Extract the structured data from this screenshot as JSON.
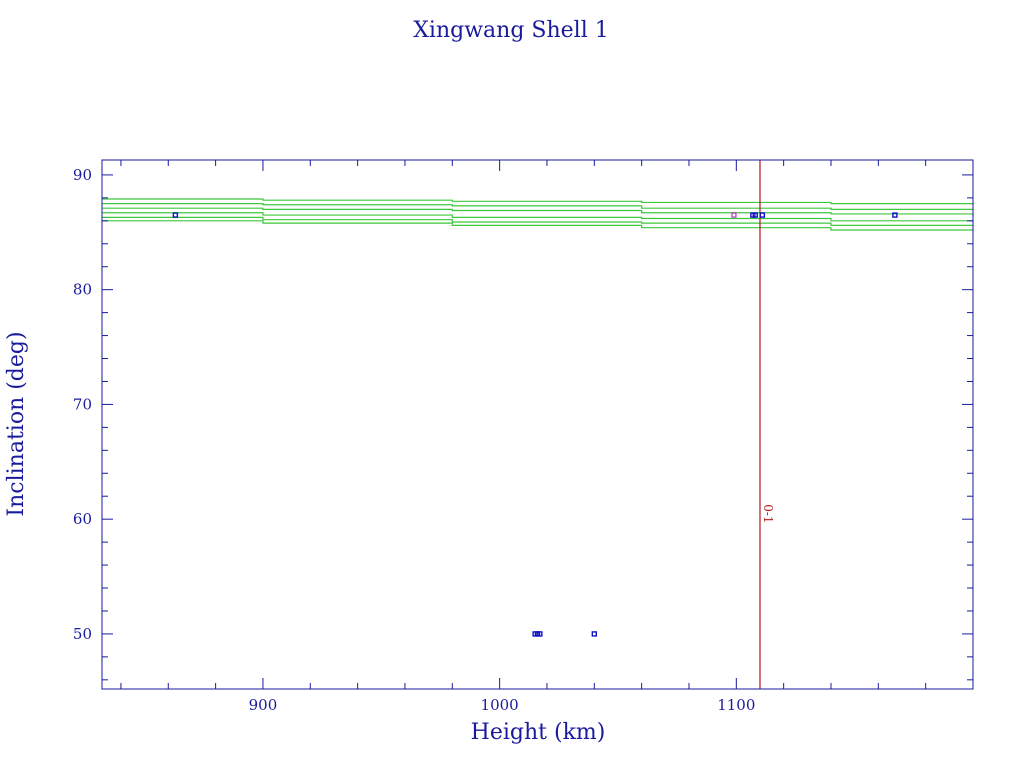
{
  "chart_data": {
    "type": "scatter",
    "title": "Xingwang Shell 1",
    "xlabel": "Height (km)",
    "ylabel": "Inclination (deg)",
    "xlim": [
      832,
      1200
    ],
    "ylim": [
      45.2,
      91.3
    ],
    "xticks": [
      900,
      1000,
      1100
    ],
    "yticks": [
      50,
      60,
      70,
      80,
      90
    ],
    "grid": false,
    "colors": {
      "axes": "#1a1a9c",
      "bands": "#3cc83c",
      "points": "#1010c8",
      "marker": "#b01818",
      "magenta": "#c030c0"
    },
    "bands": [
      {
        "x": [
          832,
          900,
          980,
          1060,
          1140,
          1200
        ],
        "y": [
          87.9,
          87.8,
          87.7,
          87.6,
          87.5,
          87.4
        ]
      },
      {
        "x": [
          832,
          900,
          980,
          1060,
          1140,
          1200
        ],
        "y": [
          87.5,
          87.4,
          87.3,
          87.1,
          87.0,
          86.9
        ]
      },
      {
        "x": [
          832,
          900,
          980,
          1060,
          1140,
          1200
        ],
        "y": [
          87.1,
          87.0,
          86.9,
          86.7,
          86.6,
          86.4
        ]
      },
      {
        "x": [
          832,
          900,
          980,
          1060,
          1140,
          1200
        ],
        "y": [
          86.7,
          86.5,
          86.3,
          86.2,
          86.0,
          85.9
        ]
      },
      {
        "x": [
          832,
          900,
          980,
          1060,
          1140,
          1200
        ],
        "y": [
          86.3,
          86.1,
          85.9,
          85.8,
          85.6,
          85.5
        ]
      },
      {
        "x": [
          832,
          900,
          980,
          1060,
          1140,
          1200
        ],
        "y": [
          86.0,
          85.8,
          85.6,
          85.4,
          85.2,
          85.1
        ]
      }
    ],
    "points": [
      {
        "x": 863,
        "y": 86.5
      },
      {
        "x": 1107,
        "y": 86.5
      },
      {
        "x": 1108,
        "y": 86.5
      },
      {
        "x": 1111,
        "y": 86.5
      },
      {
        "x": 1167,
        "y": 86.5
      },
      {
        "x": 1015,
        "y": 50.0
      },
      {
        "x": 1016,
        "y": 50.0
      },
      {
        "x": 1017,
        "y": 50.0
      },
      {
        "x": 1040,
        "y": 50.0
      }
    ],
    "magenta_points": [
      {
        "x": 1099,
        "y": 86.5
      }
    ],
    "reference_line": {
      "x": 1110,
      "label": "0-1"
    }
  }
}
